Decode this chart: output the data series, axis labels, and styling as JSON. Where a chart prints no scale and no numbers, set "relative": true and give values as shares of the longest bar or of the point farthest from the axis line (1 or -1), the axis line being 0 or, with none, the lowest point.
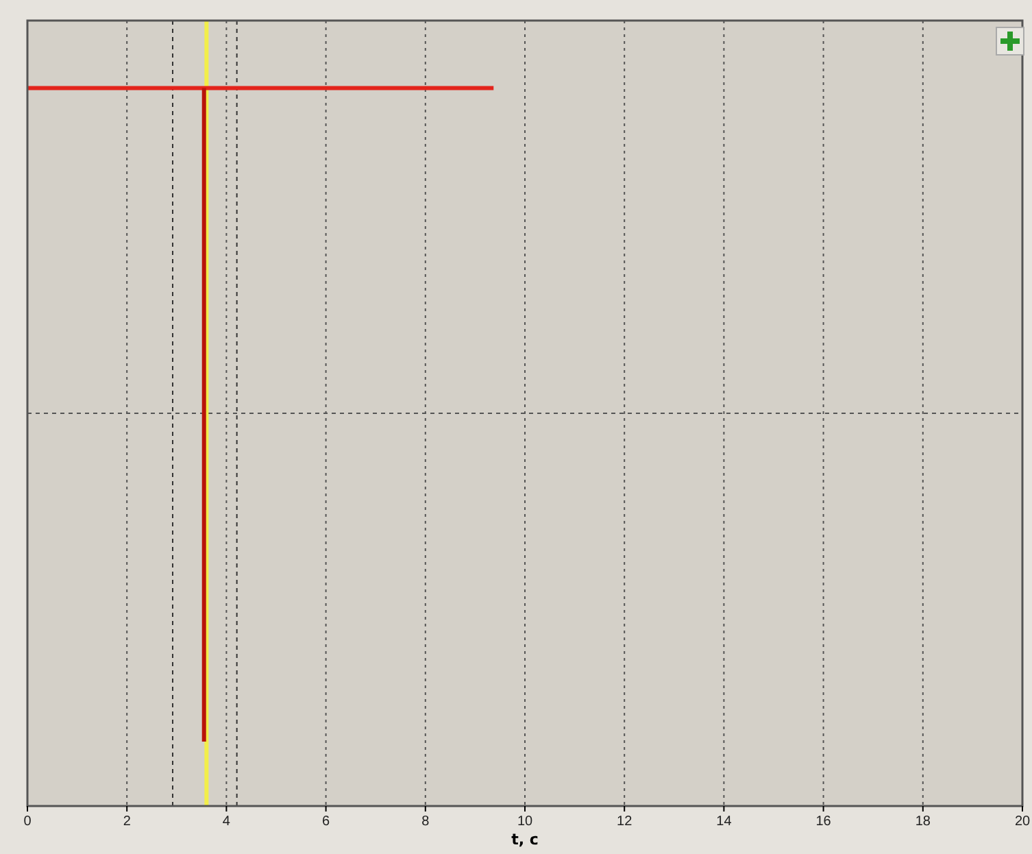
{
  "chart_data": {
    "type": "line",
    "xlabel": "t, с",
    "relative": true,
    "series": [
      {
        "color": "#f2ee4a",
        "x": [
          3.6,
          3.6
        ],
        "values": [
          0,
          1
        ]
      },
      {
        "color": "#e3241c",
        "x": [
          0,
          9.37
        ],
        "values": [
          0.914,
          0.914
        ]
      },
      {
        "color": "#b8140a",
        "x": [
          3.55,
          3.55
        ],
        "values": [
          0.914,
          0.082
        ]
      }
    ],
    "xlim": [
      0,
      20
    ],
    "xticks": [
      0,
      2,
      4,
      6,
      8,
      10,
      12,
      14,
      16,
      18,
      20
    ],
    "grid": "x",
    "marker": "none",
    "line_style": "solid",
    "ref_lines": [
      {
        "axis": "y",
        "value": 0.5,
        "line_style": "dashed",
        "color": "#555555"
      },
      {
        "axis": "x",
        "value": 2.92,
        "line_style": "dashed",
        "color": "#333333"
      },
      {
        "axis": "x",
        "value": 4.21,
        "line_style": "dashed",
        "color": "#333333"
      }
    ]
  }
}
